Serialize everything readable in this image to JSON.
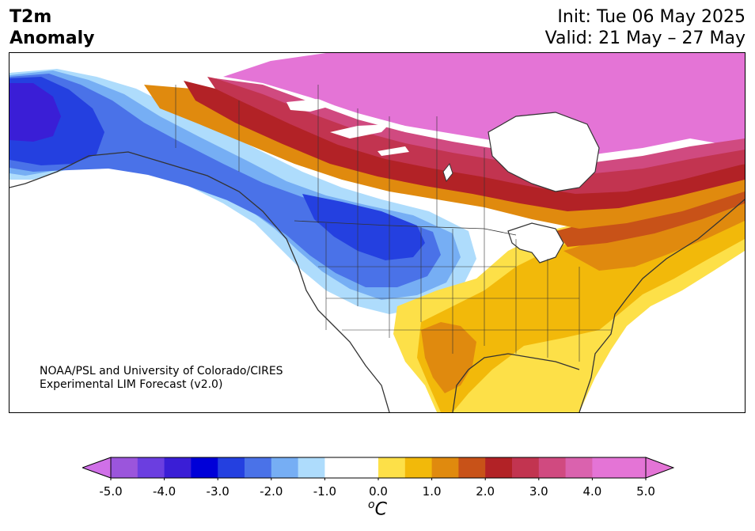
{
  "title": {
    "line1": "T2m",
    "line2": "Anomaly"
  },
  "dates": {
    "init": "Init: Tue 06 May 2025",
    "valid": "Valid: 21 May – 27 May"
  },
  "credit": {
    "line1": "NOAA/PSL and University of Colorado/CIRES",
    "line2": "Experimental LIM Forecast (v2.0)"
  },
  "colorbar": {
    "unit_super": "o",
    "unit_main": "C",
    "levels": [
      -5.0,
      -4.5,
      -4.0,
      -3.5,
      -3.0,
      -2.5,
      -2.0,
      -1.5,
      -1.0,
      -0.5,
      0.0,
      0.5,
      1.0,
      1.5,
      2.0,
      2.5,
      3.0,
      3.5,
      4.0,
      4.5,
      5.0
    ],
    "colors": [
      "#9b55dc",
      "#6b3ee0",
      "#3a1ed6",
      "#0000d8",
      "#2440e0",
      "#4a72e8",
      "#76aef4",
      "#aedcfc",
      "#ffffff",
      "#ffffff",
      "#fde048",
      "#f2b90a",
      "#e08a0e",
      "#c85218",
      "#b22226",
      "#c23450",
      "#d04a80",
      "#da62ae",
      "#e474d6",
      "#e474d6"
    ],
    "under_color": "#d070e8",
    "over_color": "#e474d6",
    "tick_labels": [
      "-5.0",
      "-4.0",
      "-3.0",
      "-2.0",
      "-1.0",
      "0.0",
      "1.0",
      "2.0",
      "3.0",
      "4.0",
      "5.0"
    ]
  },
  "map": {
    "domain": "North America",
    "variable": "2m temperature anomaly",
    "colors": {
      "strong_cold": "#2440e0",
      "cold": "#4a72e8",
      "cool": "#76aef4",
      "slight_cool": "#aedcfc",
      "slight_warm": "#fde048",
      "warm": "#f2b90a",
      "warmer": "#e08a0e",
      "hot": "#c85218",
      "very_hot": "#b22226",
      "extreme": "#c23450",
      "extreme_plus": "#e474d6",
      "deep_cold": "#3a1ed6",
      "border": "#333333",
      "water": "#ffffff"
    }
  }
}
